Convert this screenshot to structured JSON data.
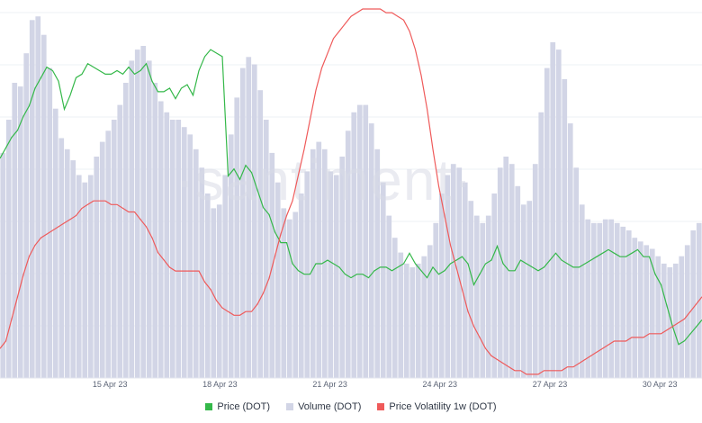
{
  "brand": {
    "watermark": "·santiment·"
  },
  "legend": [
    {
      "label": "Price (DOT)",
      "color": "#34b849"
    },
    {
      "label": "Volume (DOT)",
      "color": "#d2d5e6"
    },
    {
      "label": "Price Volatility 1w (DOT)",
      "color": "#ef5a5a"
    }
  ],
  "chart_data": {
    "type": "line",
    "x_range": [
      "2023-04-12",
      "2023-05-01"
    ],
    "x_tick_labels": [
      "15 Apr 23",
      "18 Apr 23",
      "21 Apr 23",
      "24 Apr 23",
      "27 Apr 23",
      "30 Apr 23"
    ],
    "x_tick_dates": [
      "2023-04-15",
      "2023-04-18",
      "2023-04-21",
      "2023-04-24",
      "2023-04-27",
      "2023-04-30"
    ],
    "grid": {
      "horizontal": true,
      "vertical": false
    },
    "legend_position": "bottom-center",
    "series": [
      {
        "name": "Volume (DOT)",
        "kind": "bars",
        "color": "#d2d5e6",
        "values": [
          0.61,
          0.7,
          0.8,
          0.79,
          0.88,
          0.97,
          0.98,
          0.93,
          0.84,
          0.73,
          0.65,
          0.62,
          0.59,
          0.55,
          0.53,
          0.55,
          0.6,
          0.64,
          0.67,
          0.7,
          0.74,
          0.8,
          0.86,
          0.89,
          0.9,
          0.86,
          0.8,
          0.75,
          0.72,
          0.7,
          0.7,
          0.68,
          0.66,
          0.62,
          0.57,
          0.5,
          0.46,
          0.47,
          0.55,
          0.66,
          0.76,
          0.84,
          0.87,
          0.85,
          0.78,
          0.7,
          0.61,
          0.53,
          0.46,
          0.43,
          0.45,
          0.5,
          0.56,
          0.62,
          0.64,
          0.62,
          0.56,
          0.55,
          0.6,
          0.67,
          0.72,
          0.74,
          0.74,
          0.69,
          0.62,
          0.53,
          0.44,
          0.38,
          0.34,
          0.31,
          0.3,
          0.31,
          0.33,
          0.36,
          0.42,
          0.5,
          0.55,
          0.58,
          0.57,
          0.53,
          0.48,
          0.44,
          0.42,
          0.44,
          0.5,
          0.57,
          0.6,
          0.58,
          0.52,
          0.47,
          0.48,
          0.58,
          0.72,
          0.84,
          0.91,
          0.89,
          0.81,
          0.69,
          0.57,
          0.47,
          0.43,
          0.42,
          0.42,
          0.43,
          0.43,
          0.42,
          0.41,
          0.4,
          0.38,
          0.37,
          0.36,
          0.35,
          0.33,
          0.31,
          0.3,
          0.31,
          0.33,
          0.36,
          0.4,
          0.42
        ],
        "note": "relative volume (axis not labeled)"
      },
      {
        "name": "Price (DOT)",
        "kind": "line",
        "color": "#34b849",
        "values": [
          0.6,
          0.63,
          0.66,
          0.68,
          0.72,
          0.75,
          0.8,
          0.83,
          0.86,
          0.85,
          0.82,
          0.74,
          0.78,
          0.83,
          0.84,
          0.87,
          0.86,
          0.85,
          0.84,
          0.84,
          0.85,
          0.84,
          0.86,
          0.84,
          0.85,
          0.87,
          0.82,
          0.79,
          0.79,
          0.8,
          0.77,
          0.8,
          0.81,
          0.78,
          0.85,
          0.89,
          0.91,
          0.9,
          0.89,
          0.55,
          0.57,
          0.54,
          0.58,
          0.56,
          0.51,
          0.46,
          0.44,
          0.39,
          0.36,
          0.36,
          0.3,
          0.28,
          0.27,
          0.27,
          0.3,
          0.3,
          0.31,
          0.3,
          0.29,
          0.27,
          0.26,
          0.27,
          0.27,
          0.26,
          0.28,
          0.29,
          0.29,
          0.28,
          0.29,
          0.3,
          0.33,
          0.3,
          0.28,
          0.26,
          0.29,
          0.27,
          0.28,
          0.3,
          0.31,
          0.32,
          0.3,
          0.24,
          0.27,
          0.3,
          0.31,
          0.35,
          0.3,
          0.28,
          0.28,
          0.31,
          0.3,
          0.29,
          0.28,
          0.29,
          0.31,
          0.33,
          0.31,
          0.3,
          0.29,
          0.29,
          0.3,
          0.31,
          0.32,
          0.33,
          0.34,
          0.33,
          0.32,
          0.32,
          0.33,
          0.34,
          0.32,
          0.32,
          0.27,
          0.24,
          0.18,
          0.12,
          0.07,
          0.08,
          0.1,
          0.12,
          0.14
        ]
      },
      {
        "name": "Price Volatility 1w (DOT)",
        "kind": "line",
        "color": "#ef5a5a",
        "values": [
          0.08,
          0.1,
          0.16,
          0.22,
          0.28,
          0.33,
          0.36,
          0.38,
          0.39,
          0.4,
          0.41,
          0.42,
          0.43,
          0.44,
          0.46,
          0.47,
          0.48,
          0.48,
          0.48,
          0.47,
          0.47,
          0.46,
          0.45,
          0.45,
          0.43,
          0.41,
          0.38,
          0.34,
          0.32,
          0.3,
          0.29,
          0.29,
          0.29,
          0.29,
          0.29,
          0.26,
          0.24,
          0.21,
          0.19,
          0.18,
          0.17,
          0.17,
          0.18,
          0.18,
          0.2,
          0.23,
          0.27,
          0.33,
          0.39,
          0.44,
          0.48,
          0.55,
          0.62,
          0.7,
          0.78,
          0.84,
          0.88,
          0.92,
          0.94,
          0.96,
          0.98,
          0.99,
          1.0,
          1.0,
          1.0,
          1.0,
          0.99,
          0.99,
          0.98,
          0.97,
          0.94,
          0.89,
          0.82,
          0.73,
          0.62,
          0.52,
          0.44,
          0.36,
          0.3,
          0.24,
          0.18,
          0.14,
          0.11,
          0.08,
          0.06,
          0.05,
          0.04,
          0.03,
          0.02,
          0.02,
          0.01,
          0.01,
          0.01,
          0.02,
          0.02,
          0.02,
          0.02,
          0.03,
          0.03,
          0.04,
          0.05,
          0.06,
          0.07,
          0.08,
          0.09,
          0.1,
          0.1,
          0.1,
          0.11,
          0.11,
          0.11,
          0.12,
          0.12,
          0.12,
          0.13,
          0.14,
          0.15,
          0.16,
          0.18,
          0.2,
          0.22
        ],
        "note": "relative volatility (axis not labeled)"
      }
    ]
  }
}
